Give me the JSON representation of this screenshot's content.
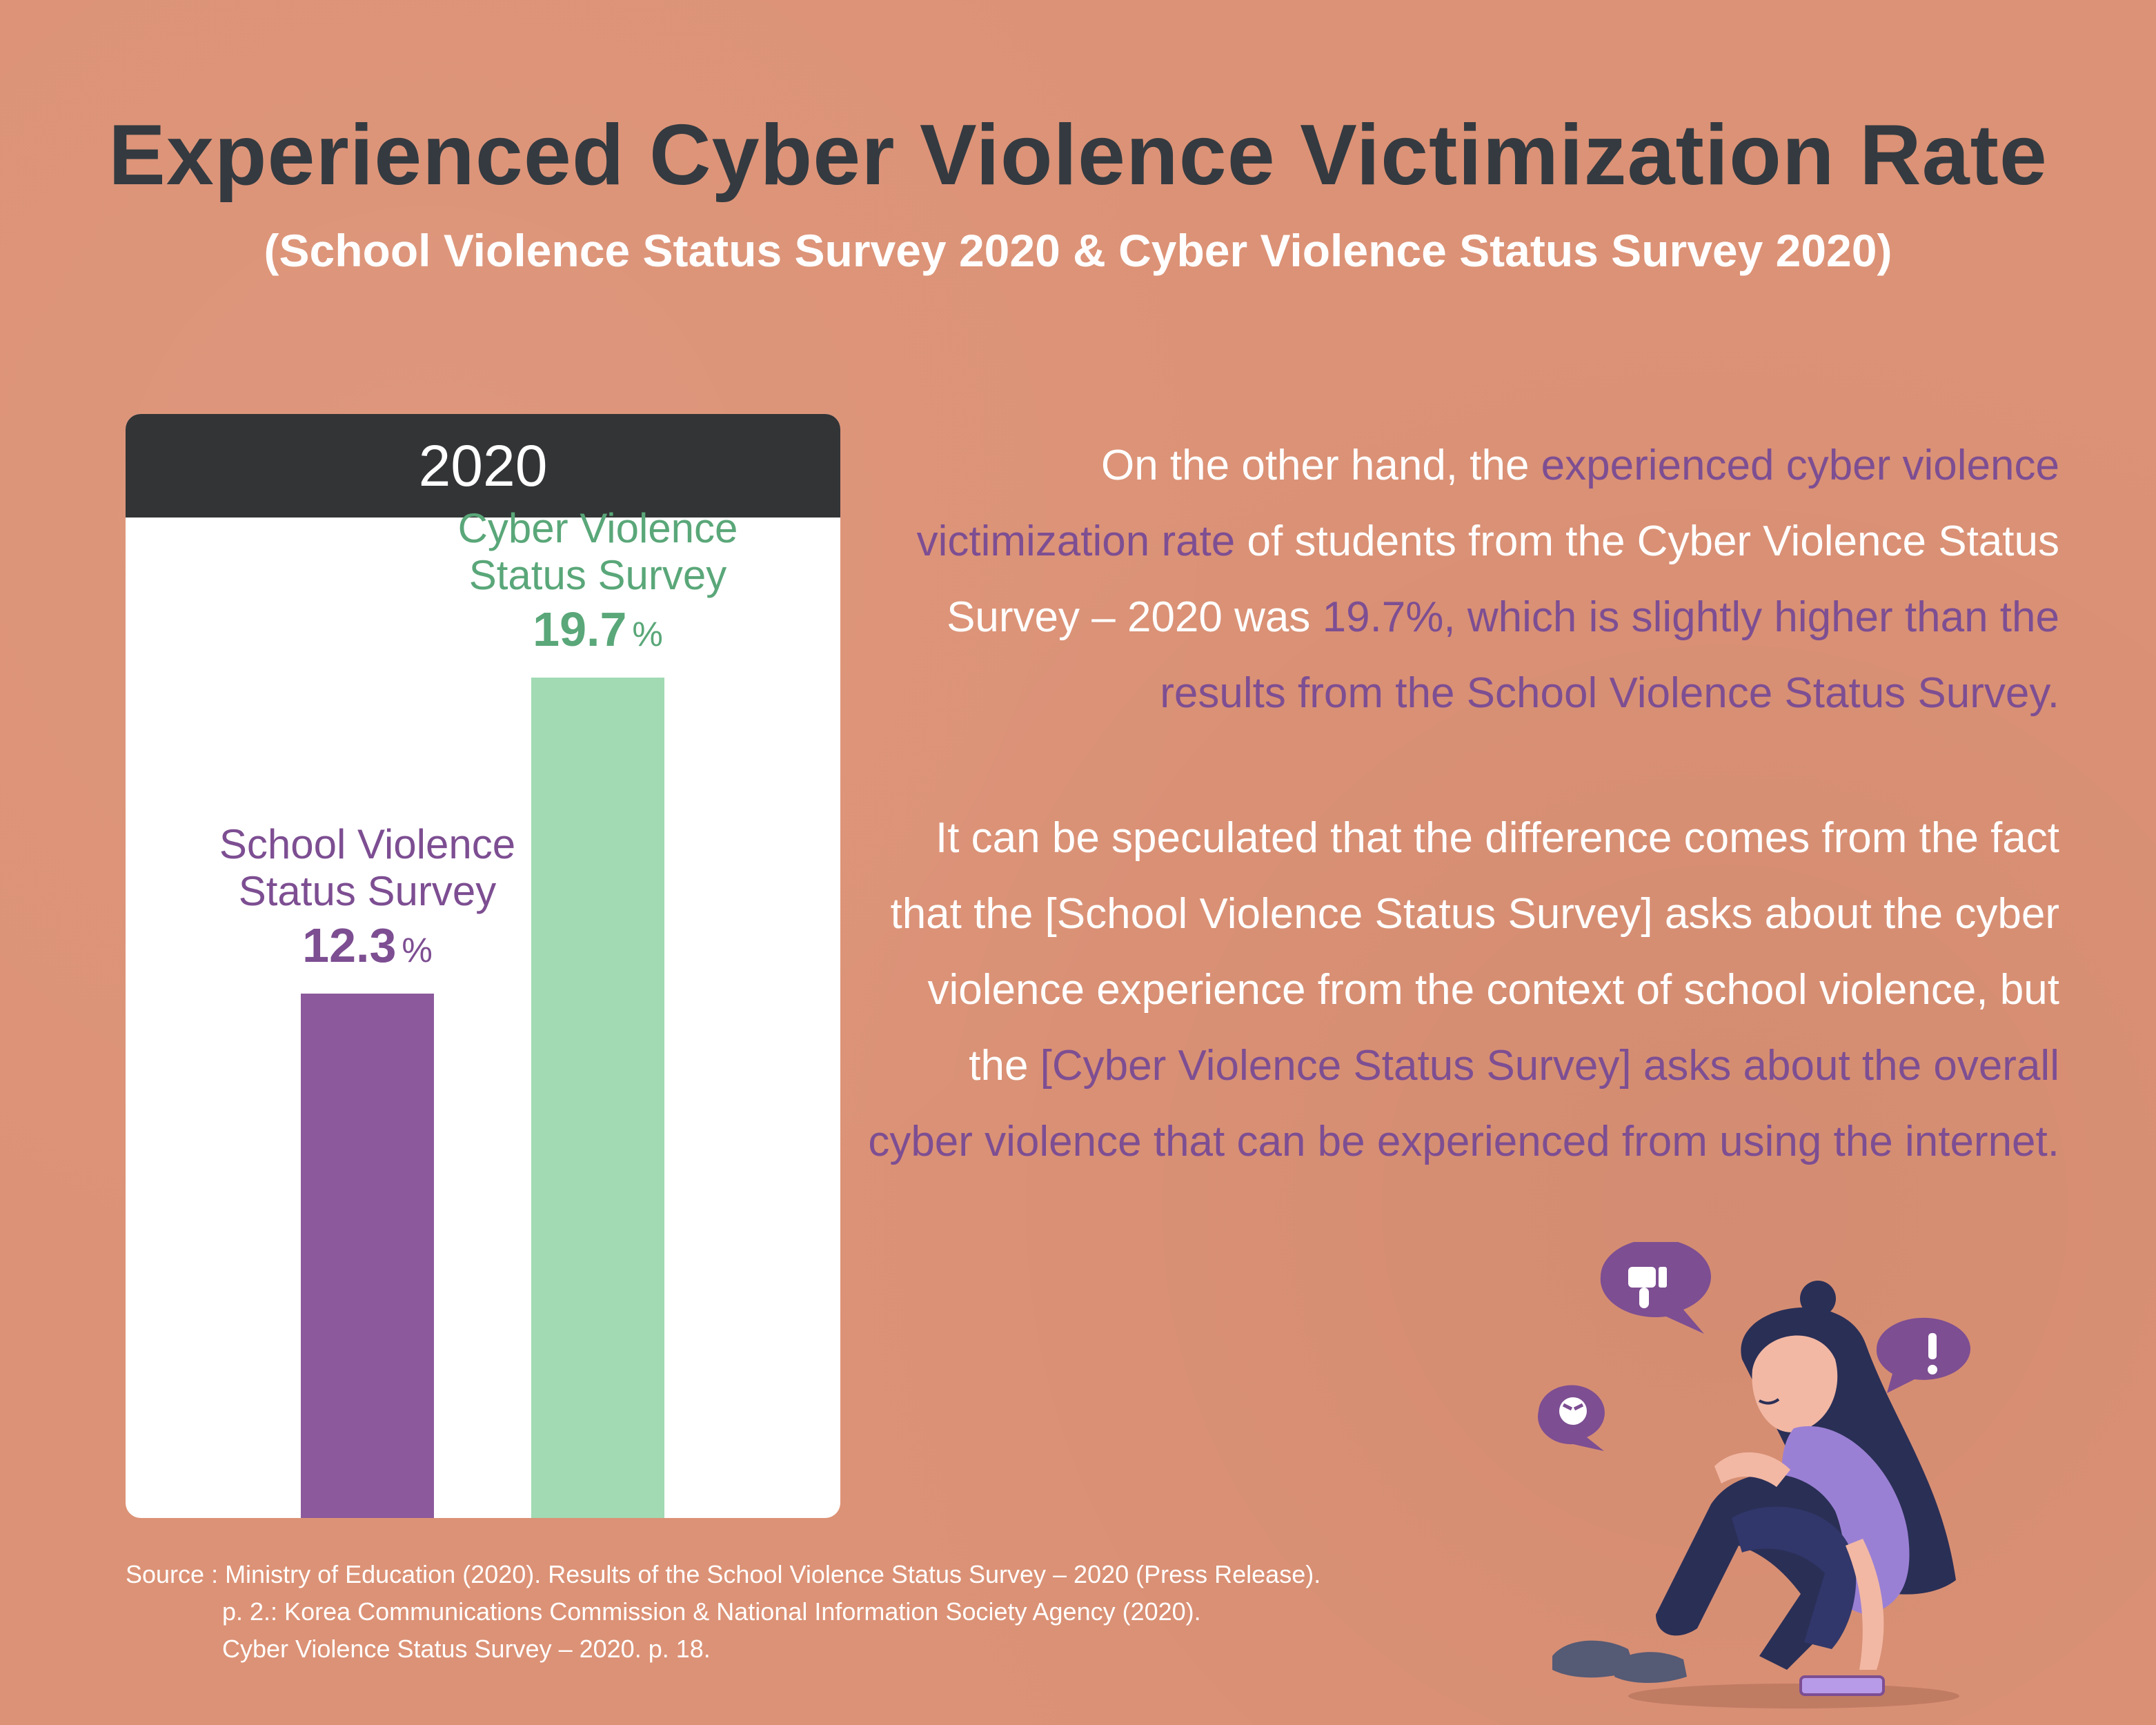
{
  "title": "Experienced Cyber Violence Victimization Rate",
  "subtitle": "(School Violence Status Survey 2020 & Cyber Violence Status Survey 2020)",
  "chart_data": {
    "type": "bar",
    "title": "2020",
    "unit": "%",
    "ylim": [
      0,
      22
    ],
    "categories": [
      "School Violence Status Survey",
      "Cyber Violence Status Survey"
    ],
    "values": [
      12.3,
      19.7
    ],
    "value_labels": [
      "12.3",
      "19.7"
    ],
    "label_lines": [
      [
        "School Violence",
        "Status Survey"
      ],
      [
        "Cyber Violence",
        "Status Survey"
      ]
    ],
    "colors": [
      "#8c5a9c",
      "#a1dab3"
    ],
    "label_colors": [
      "#7d4e92",
      "#5aa779"
    ]
  },
  "paragraph1": {
    "s1": "On the other hand, the ",
    "s2": "experienced cyber violence victimization rate",
    "s3": " of students from the Cyber Violence Status Survey – 2020 was ",
    "s4": "19.7%, which is slightly higher than the results from the School Violence Status Survey."
  },
  "paragraph2": {
    "s1": "It can be speculated that the difference comes from the fact that the [School Violence Status Survey] asks about the cyber violence experience from the context of school violence, but the ",
    "s2": "[Cyber Violence Status Survey] asks about the overall cyber violence that can be experienced from using the internet."
  },
  "source": {
    "line1": "Source : Ministry of Education (2020). Results of the School Violence Status Survey – 2020 (Press Release).",
    "line2": "p. 2.: Korea Communications Commission & National Information Society Agency (2020).",
    "line3": "Cyber Violence Status Survey – 2020. p. 18."
  },
  "colors": {
    "background": "#dc9276",
    "accent": "#7d4e92",
    "dark": "#343a40"
  }
}
